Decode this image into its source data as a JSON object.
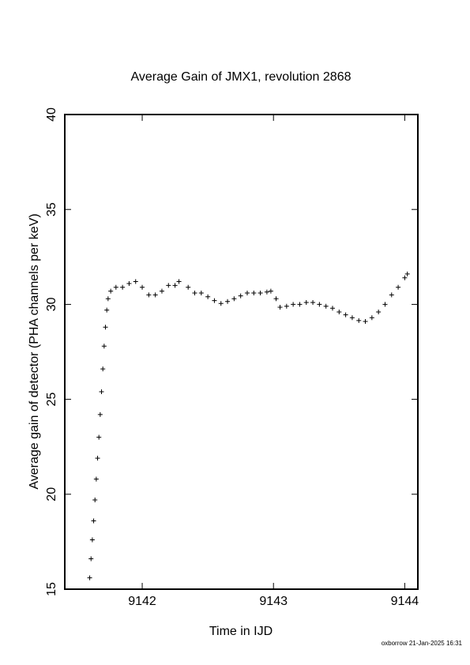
{
  "chart_data": {
    "type": "scatter",
    "title": "Average Gain of JMX1, revolution 2868",
    "x_label": "Time in IJD",
    "y_label": "Average gain of detector (PHA channels per keV)",
    "footer": "oxborrow 21-Jan-2025 16:31",
    "marker": "plus",
    "color": "#000000",
    "xlim": [
      9141.41,
      9144.1
    ],
    "xticks": [
      9142,
      9143,
      9144
    ],
    "ylim": [
      15,
      40
    ],
    "yticks": [
      15,
      20,
      25,
      30,
      35,
      40
    ],
    "x": [
      9141.6,
      9141.61,
      9141.62,
      9141.63,
      9141.64,
      9141.65,
      9141.66,
      9141.67,
      9141.68,
      9141.69,
      9141.7,
      9141.71,
      9141.72,
      9141.73,
      9141.74,
      9141.76,
      9141.8,
      9141.85,
      9141.9,
      9141.95,
      9142.0,
      9142.05,
      9142.1,
      9142.15,
      9142.2,
      9142.25,
      9142.28,
      9142.35,
      9142.4,
      9142.45,
      9142.5,
      9142.55,
      9142.6,
      9142.65,
      9142.7,
      9142.75,
      9142.8,
      9142.85,
      9142.9,
      9142.95,
      9142.98,
      9143.02,
      9143.05,
      9143.1,
      9143.15,
      9143.2,
      9143.25,
      9143.3,
      9143.35,
      9143.4,
      9143.45,
      9143.5,
      9143.55,
      9143.6,
      9143.65,
      9143.7,
      9143.75,
      9143.8,
      9143.85,
      9143.9,
      9143.95,
      9144.0,
      9144.02
    ],
    "values": [
      15.6,
      16.6,
      17.6,
      18.6,
      19.7,
      20.8,
      21.9,
      23.0,
      24.2,
      25.4,
      26.6,
      27.8,
      28.8,
      29.7,
      30.3,
      30.7,
      30.9,
      30.9,
      31.1,
      31.2,
      30.9,
      30.5,
      30.5,
      30.7,
      31.0,
      31.0,
      31.2,
      30.9,
      30.6,
      30.6,
      30.4,
      30.2,
      30.05,
      30.15,
      30.3,
      30.45,
      30.6,
      30.6,
      30.6,
      30.65,
      30.7,
      30.3,
      29.85,
      29.9,
      30.0,
      30.0,
      30.1,
      30.1,
      30.0,
      29.9,
      29.8,
      29.6,
      29.45,
      29.3,
      29.15,
      29.1,
      29.3,
      29.6,
      30.0,
      30.5,
      30.9,
      31.4,
      31.6
    ]
  }
}
